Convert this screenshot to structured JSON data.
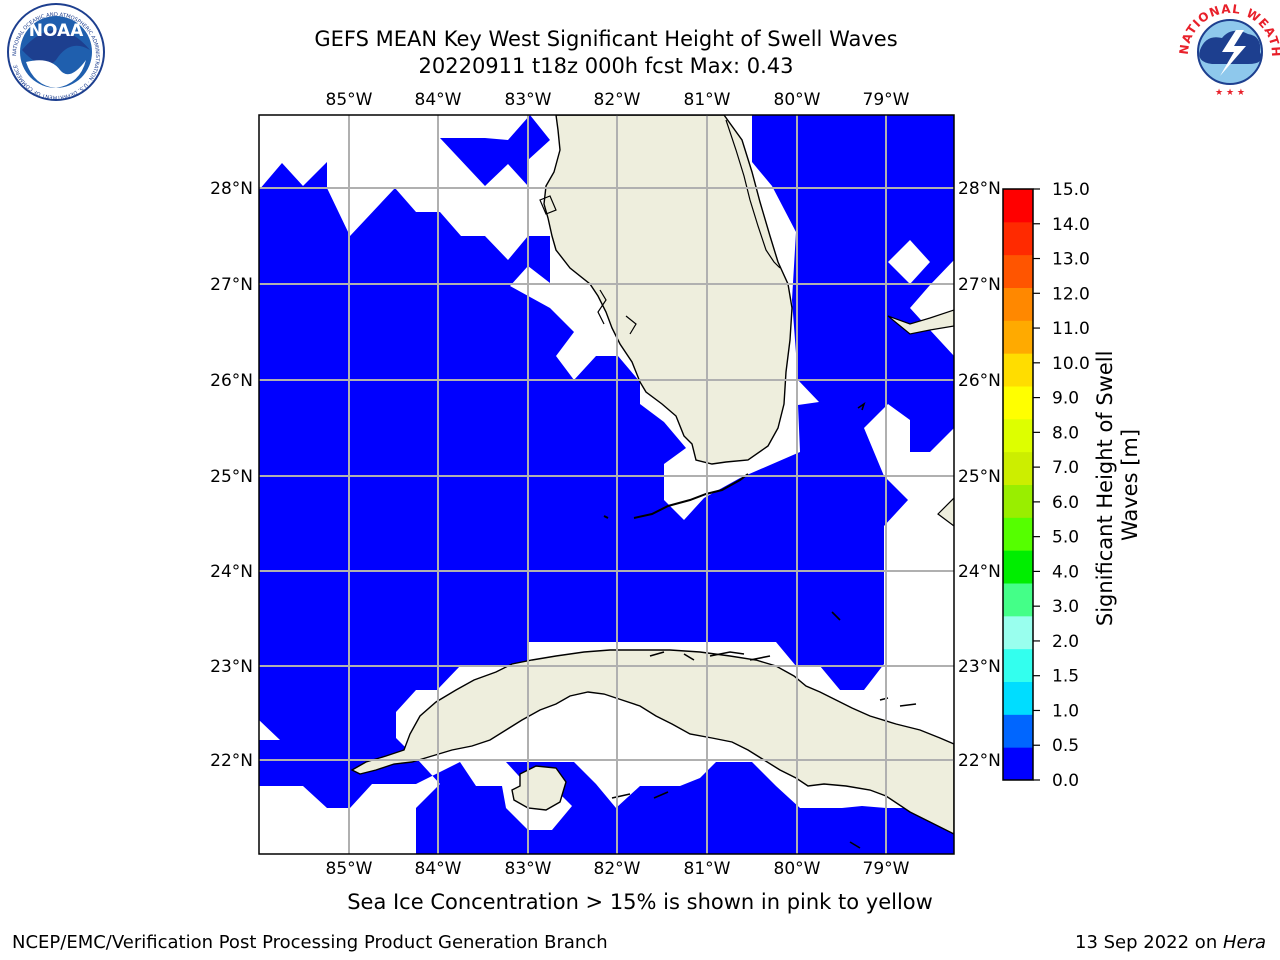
{
  "header": {
    "title_line1": "GEFS MEAN Key West Significant Height of Swell Waves",
    "title_line2": "20220911 t18z 000h fcst   Max: 0.43"
  },
  "logos": {
    "noaa_text": "NOAA",
    "noaa_ring_text": "NATIONAL OCEANIC AND ATMOSPHERIC ADMINISTRATION · U.S. DEPARTMENT OF COMMERCE",
    "nws_ring_text": "NATIONAL WEATHER SERVICE"
  },
  "map": {
    "lon_labels": [
      "85°W",
      "84°W",
      "83°W",
      "82°W",
      "81°W",
      "80°W",
      "79°W"
    ],
    "lat_labels": [
      "28°N",
      "27°N",
      "26°N",
      "25°N",
      "24°N",
      "23°N",
      "22°N"
    ],
    "colors": {
      "land": "#eeeedd",
      "swell_0_0.5": "#0000ff",
      "no_data": "#ffffff",
      "grid": "#b0b0b0"
    }
  },
  "colorbar": {
    "label": "Significant Height of Swell Waves [m]",
    "label_line1": "Significant Height of Swell",
    "label_line2": "Waves [m]",
    "ticks": [
      "15.0",
      "14.0",
      "13.0",
      "12.0",
      "11.0",
      "10.0",
      "9.0",
      "8.0",
      "7.0",
      "6.0",
      "5.0",
      "4.0",
      "3.0",
      "2.0",
      "1.5",
      "1.0",
      "0.5",
      "0.0"
    ],
    "levels": [
      {
        "color": "#0000ff"
      },
      {
        "color": "#0066ff"
      },
      {
        "color": "#00ddff"
      },
      {
        "color": "#33ffee"
      },
      {
        "color": "#99ffee"
      },
      {
        "color": "#44ff88"
      },
      {
        "color": "#00ee00"
      },
      {
        "color": "#55ff00"
      },
      {
        "color": "#99ee00"
      },
      {
        "color": "#ccee00"
      },
      {
        "color": "#ddff00"
      },
      {
        "color": "#ffff00"
      },
      {
        "color": "#ffdd00"
      },
      {
        "color": "#ffaa00"
      },
      {
        "color": "#ff8800"
      },
      {
        "color": "#ff5500"
      },
      {
        "color": "#ff2a00"
      },
      {
        "color": "#ff0000"
      }
    ]
  },
  "note": "Sea Ice Concentration > 15% is shown in pink to yellow",
  "footer": {
    "left": "NCEP/EMC/Verification Post Processing Product Generation Branch",
    "right_prefix": "13 Sep 2022 on ",
    "right_host": "Hera"
  }
}
